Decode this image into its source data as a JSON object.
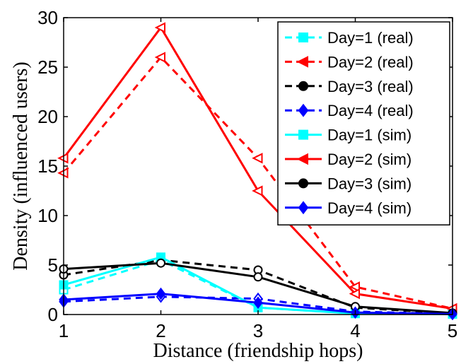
{
  "chart_data": {
    "type": "line",
    "title": "",
    "xlabel": "Distance (friendship hops)",
    "ylabel": "Density (influenced users)",
    "x": [
      1,
      2,
      3,
      4,
      5
    ],
    "xlim": [
      1,
      5
    ],
    "ylim": [
      0,
      30
    ],
    "xticks": [
      "1",
      "2",
      "3",
      "4",
      "5"
    ],
    "yticks": [
      "0",
      "5",
      "10",
      "15",
      "20",
      "25",
      "30"
    ],
    "grid": false,
    "legend_position": "top-right",
    "series": [
      {
        "name": "Day=1 (real)",
        "color": "#00ffff",
        "linestyle": "dashed",
        "marker": "square",
        "fill": false,
        "values": [
          2.5,
          5.5,
          0.7,
          0.1,
          0.05
        ]
      },
      {
        "name": "Day=2 (real)",
        "color": "#ff0000",
        "linestyle": "dashed",
        "marker": "triangle-left",
        "fill": false,
        "values": [
          14.3,
          26.0,
          15.8,
          2.8,
          0.6
        ]
      },
      {
        "name": "Day=3 (real)",
        "color": "#000000",
        "linestyle": "dashed",
        "marker": "circle",
        "fill": false,
        "values": [
          4.0,
          5.5,
          4.5,
          0.7,
          0.1
        ]
      },
      {
        "name": "Day=4 (real)",
        "color": "#0000ff",
        "linestyle": "dashed",
        "marker": "diamond",
        "fill": false,
        "values": [
          1.3,
          1.8,
          1.6,
          0.3,
          0.05
        ]
      },
      {
        "name": "Day=1 (sim)",
        "color": "#00ffff",
        "linestyle": "solid",
        "marker": "square",
        "fill": true,
        "values": [
          3.0,
          5.8,
          0.7,
          0.1,
          0.05
        ]
      },
      {
        "name": "Day=2 (sim)",
        "color": "#ff0000",
        "linestyle": "solid",
        "marker": "triangle-left",
        "fill": false,
        "values": [
          15.8,
          29.0,
          12.5,
          2.1,
          0.6
        ]
      },
      {
        "name": "Day=3 (sim)",
        "color": "#000000",
        "linestyle": "solid",
        "marker": "circle",
        "fill": false,
        "values": [
          4.6,
          5.2,
          3.8,
          0.8,
          0.15
        ]
      },
      {
        "name": "Day=4 (sim)",
        "color": "#0000ff",
        "linestyle": "solid",
        "marker": "diamond",
        "fill": true,
        "values": [
          1.5,
          2.1,
          1.2,
          0.2,
          0.05
        ]
      }
    ]
  }
}
